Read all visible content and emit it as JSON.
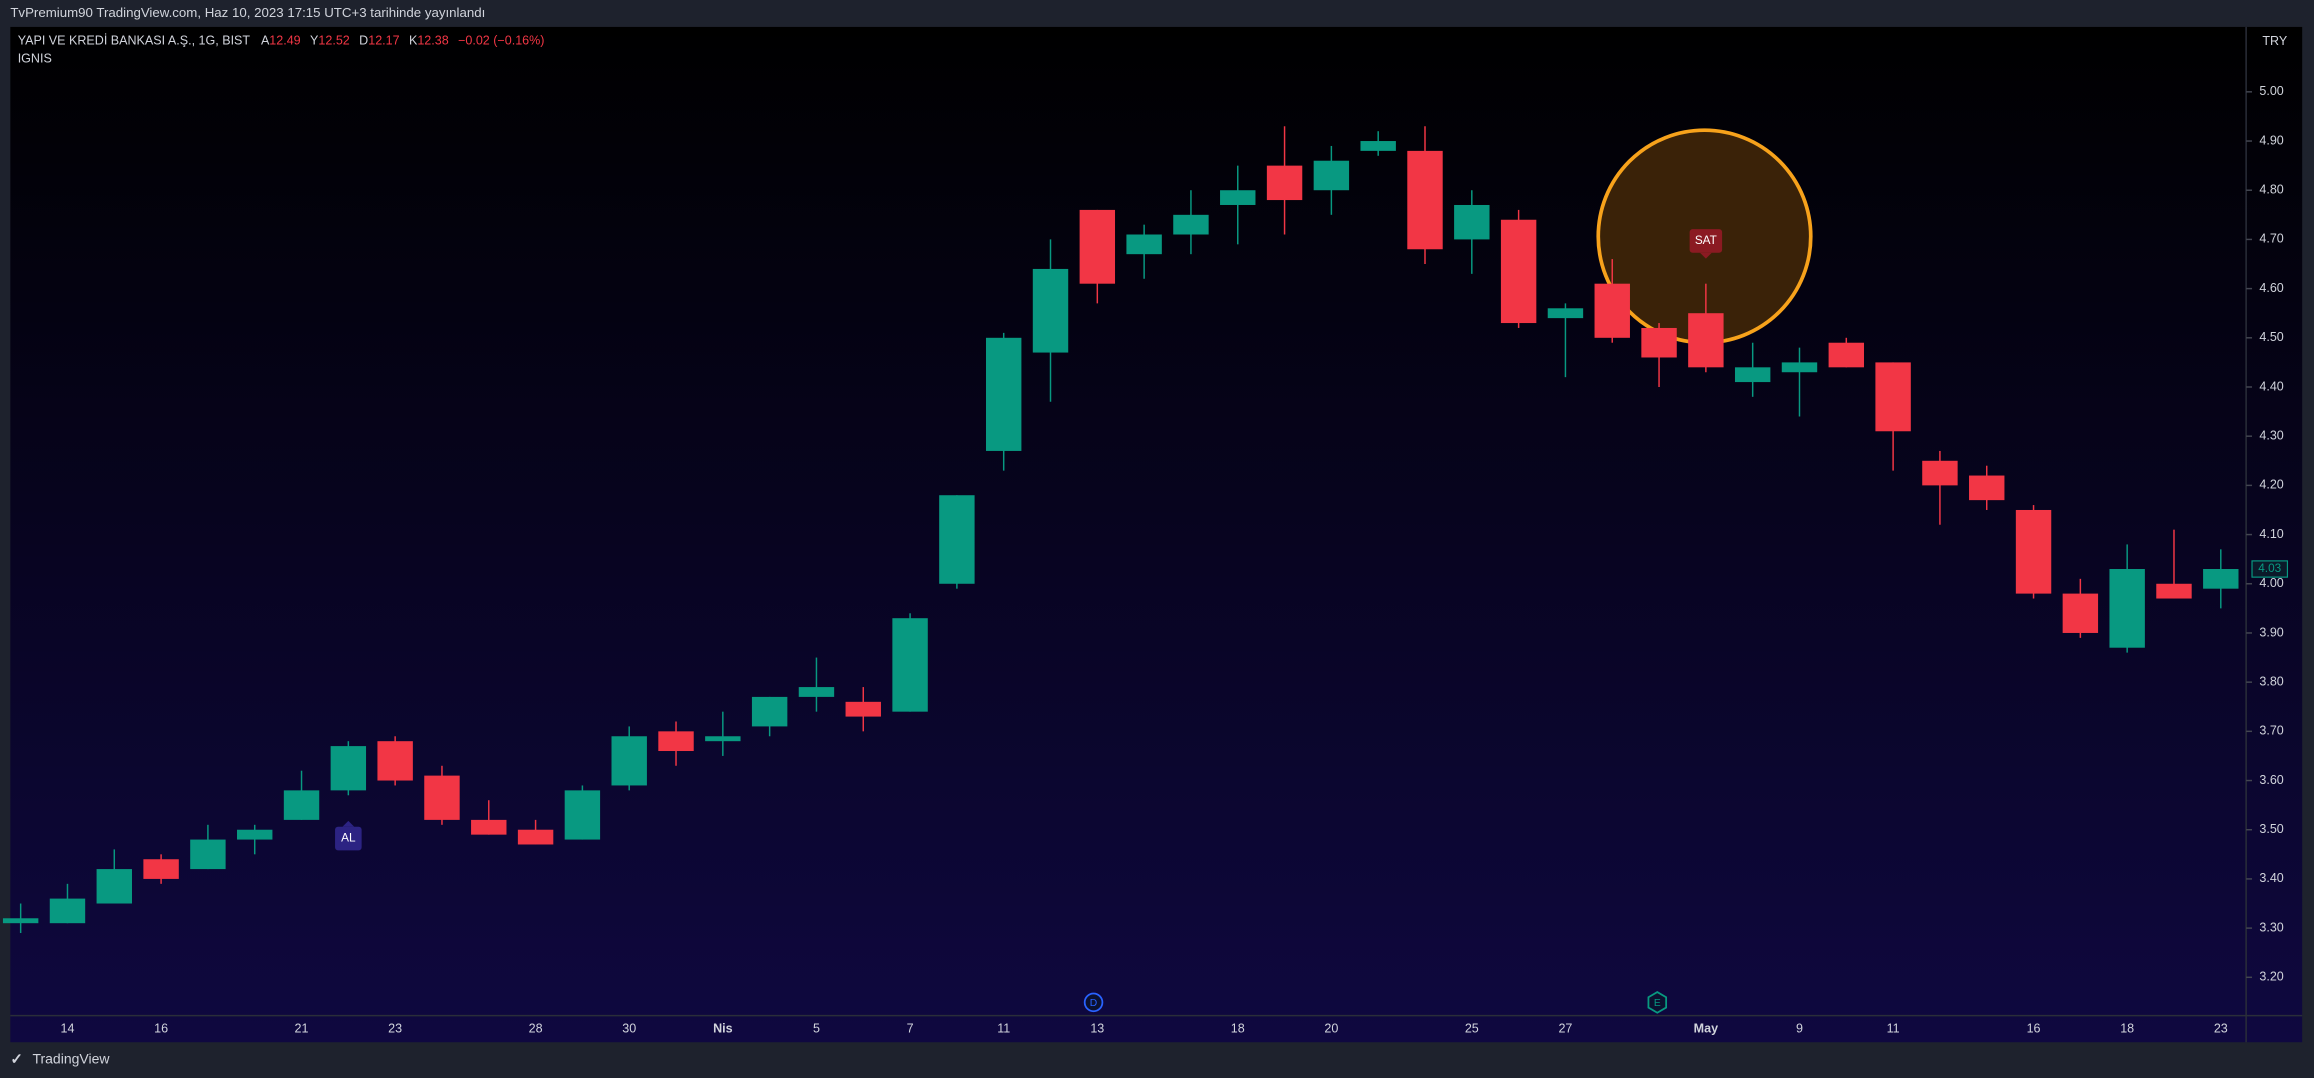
{
  "header": {
    "title": "TvPremium90 TradingView.com, Haz 10, 2023 17:15 UTC+3 tarihinde yayınlandı"
  },
  "legend": {
    "symbol": "YAPI VE KREDİ BANKASI A.Ş., 1G, BIST",
    "open_label": "A",
    "open": 12.49,
    "high_label": "Y",
    "high": 12.52,
    "low_label": "D",
    "low": 12.17,
    "close_label": "K",
    "close": 12.38,
    "change": "−0.02 (−0.16%)",
    "indicator": "IGNIS"
  },
  "footer": {
    "brand": "TradingView"
  },
  "chart_data": {
    "type": "candlestick",
    "currency": "TRY",
    "up_color": "#089981",
    "down_color": "#f23645",
    "categories": [
      null,
      "14",
      null,
      "16",
      null,
      null,
      "21",
      null,
      "23",
      null,
      null,
      "28",
      null,
      "30",
      null,
      "Nis",
      null,
      "5",
      null,
      "7",
      null,
      "11",
      null,
      "13",
      null,
      null,
      "18",
      null,
      "20",
      null,
      null,
      "25",
      null,
      "27",
      null,
      null,
      "May",
      null,
      "9",
      null,
      "11",
      null,
      null,
      "16",
      null,
      "18",
      null,
      "23"
    ],
    "open": [
      3.31,
      3.31,
      3.35,
      3.44,
      3.42,
      3.48,
      3.52,
      3.58,
      3.68,
      3.61,
      3.52,
      3.5,
      3.48,
      3.59,
      3.7,
      3.68,
      3.71,
      3.77,
      3.76,
      3.74,
      4.0,
      4.27,
      4.47,
      4.76,
      4.67,
      4.71,
      4.77,
      4.85,
      4.8,
      4.88,
      4.88,
      4.7,
      4.74,
      4.54,
      4.61,
      4.52,
      4.55,
      4.41,
      4.43,
      4.49,
      4.45,
      4.25,
      4.22,
      4.15,
      3.98,
      3.87,
      4.0,
      3.99
    ],
    "high": [
      3.35,
      3.39,
      3.46,
      3.45,
      3.51,
      3.51,
      3.62,
      3.68,
      3.69,
      3.63,
      3.56,
      3.52,
      3.59,
      3.71,
      3.72,
      3.74,
      3.77,
      3.85,
      3.79,
      3.94,
      4.18,
      4.51,
      4.7,
      4.76,
      4.73,
      4.8,
      4.85,
      4.93,
      4.89,
      4.92,
      4.93,
      4.8,
      4.76,
      4.57,
      4.66,
      4.53,
      4.61,
      4.49,
      4.48,
      4.5,
      4.45,
      4.27,
      4.24,
      4.16,
      4.01,
      4.08,
      4.11,
      4.07
    ],
    "low": [
      3.29,
      3.31,
      3.35,
      3.39,
      3.42,
      3.45,
      3.52,
      3.57,
      3.59,
      3.51,
      3.49,
      3.47,
      3.48,
      3.58,
      3.63,
      3.65,
      3.69,
      3.74,
      3.7,
      3.74,
      3.99,
      4.23,
      4.37,
      4.57,
      4.62,
      4.67,
      4.69,
      4.71,
      4.75,
      4.87,
      4.65,
      4.63,
      4.52,
      4.42,
      4.49,
      4.4,
      4.43,
      4.38,
      4.34,
      4.44,
      4.23,
      4.12,
      4.15,
      3.97,
      3.89,
      3.86,
      3.97,
      3.95
    ],
    "close": [
      3.32,
      3.36,
      3.42,
      3.4,
      3.48,
      3.5,
      3.58,
      3.67,
      3.6,
      3.52,
      3.49,
      3.47,
      3.58,
      3.69,
      3.66,
      3.69,
      3.77,
      3.79,
      3.73,
      3.93,
      4.18,
      4.5,
      4.64,
      4.61,
      4.71,
      4.75,
      4.8,
      4.78,
      4.86,
      4.9,
      4.68,
      4.77,
      4.53,
      4.56,
      4.5,
      4.46,
      4.44,
      4.44,
      4.45,
      4.44,
      4.31,
      4.2,
      4.17,
      3.98,
      3.9,
      4.03,
      3.97,
      4.03
    ],
    "signals": [
      "AL",
      "SAT"
    ],
    "events": [
      "D",
      "E"
    ],
    "ylim": [
      3.122,
      5.132
    ],
    "yticks": [
      {
        "value": 3.2,
        "label": "3.20"
      },
      {
        "value": 3.3,
        "label": "3.30"
      },
      {
        "value": 3.4,
        "label": "3.40"
      },
      {
        "value": 3.5,
        "label": "3.50"
      },
      {
        "value": 3.6,
        "label": "3.60"
      },
      {
        "value": 3.7,
        "label": "3.70"
      },
      {
        "value": 3.8,
        "label": "3.80"
      },
      {
        "value": 3.9,
        "label": "3.90"
      },
      {
        "value": 4.0,
        "label": "4.00"
      },
      {
        "value": 4.1,
        "label": "4.10"
      },
      {
        "value": 4.2,
        "label": "4.20"
      },
      {
        "value": 4.3,
        "label": "4.30"
      },
      {
        "value": 4.4,
        "label": "4.40"
      },
      {
        "value": 4.5,
        "label": "4.50"
      },
      {
        "value": 4.6,
        "label": "4.60"
      },
      {
        "value": 4.7,
        "label": "4.70"
      },
      {
        "value": 4.8,
        "label": "4.80"
      },
      {
        "value": 4.9,
        "label": "4.90"
      },
      {
        "value": 5.0,
        "label": "5.00"
      }
    ],
    "grid": false
  }
}
